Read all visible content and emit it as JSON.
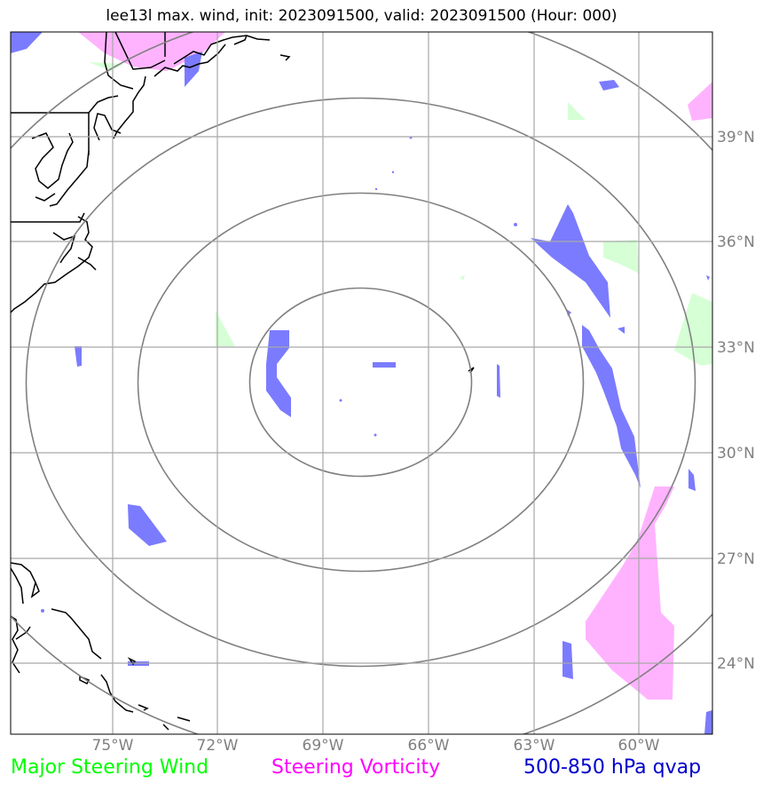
{
  "title": "lee13l max. wind, init: 2023091500, valid: 2023091500 (Hour: 000)",
  "lon_ticks": [
    "75°W",
    "72°W",
    "69°W",
    "66°W",
    "63°W",
    "60°W"
  ],
  "lat_ticks": [
    "39°N",
    "36°N",
    "33°N",
    "30°N",
    "27°N",
    "24°N"
  ],
  "legend": [
    {
      "label": "Major Steering Wind",
      "color": "#00ff00"
    },
    {
      "label": "Steering Vorticity",
      "color": "#ff00ff"
    },
    {
      "label": "500-850 hPa qvap",
      "color": "#0000cc"
    }
  ],
  "colors": {
    "qvap_fill": "#7b7bff",
    "vorticity_fill": "#ffb3ff",
    "wind_fill": "#ccffcc",
    "rings": "#808080",
    "grid": "#a8a8a8",
    "coast": "#000000"
  }
}
